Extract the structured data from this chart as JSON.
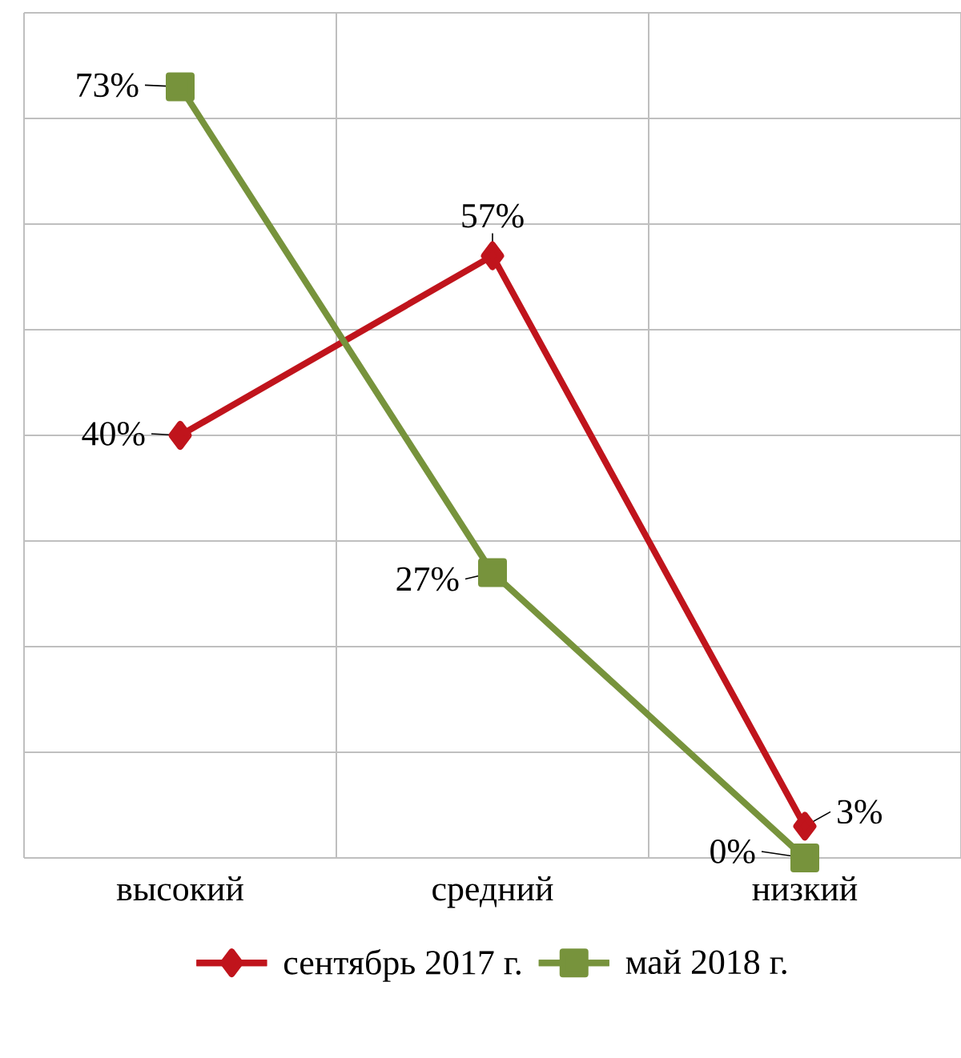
{
  "chart_data": {
    "type": "line",
    "categories": [
      "высокий",
      "средний",
      "низкий"
    ],
    "series": [
      {
        "name": "сентябрь 2017 г.",
        "color": "#c0141c",
        "marker": "diamond",
        "values": [
          40,
          57,
          3
        ],
        "value_labels": [
          "40%",
          "57%",
          "3%"
        ]
      },
      {
        "name": "май 2018 г.",
        "color": "#77933c",
        "marker": "square",
        "values": [
          73,
          27,
          0
        ],
        "value_labels": [
          "73%",
          "27%",
          "0%"
        ]
      }
    ],
    "ylim": [
      0,
      80
    ],
    "yticks": [
      {
        "value": 0,
        "label": null
      },
      {
        "value": 10,
        "label": null
      },
      {
        "value": 20,
        "label": null
      },
      {
        "value": 30,
        "label": null
      },
      {
        "value": 40,
        "label": null
      },
      {
        "value": 50,
        "label": null
      },
      {
        "value": 60,
        "label": null
      },
      {
        "value": 70,
        "label": null
      },
      {
        "value": 80,
        "label": null
      }
    ],
    "tick_labels": "x",
    "grid": true,
    "legend": "bottom",
    "line_style": "solid"
  }
}
